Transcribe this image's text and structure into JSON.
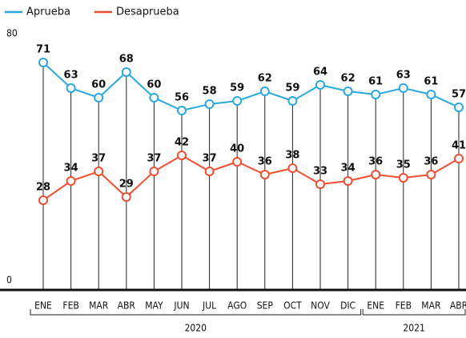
{
  "chart_data": {
    "type": "line",
    "categories": [
      "ENE",
      "FEB",
      "MAR",
      "ABR",
      "MAY",
      "JUN",
      "JUL",
      "AGO",
      "SEP",
      "OCT",
      "NOV",
      "DIC",
      "ENE",
      "FEB",
      "MAR",
      "ABR"
    ],
    "x_groups": [
      {
        "label": "2020",
        "span": 12
      },
      {
        "label": "2021",
        "span": 4
      }
    ],
    "series": [
      {
        "name": "Aprueba",
        "color": "#29a8e0",
        "values": [
          71,
          63,
          60,
          68,
          60,
          56,
          58,
          59,
          62,
          59,
          64,
          62,
          61,
          63,
          61,
          57
        ]
      },
      {
        "name": "Desaprueba",
        "color": "#f04e30",
        "values": [
          28,
          34,
          37,
          29,
          37,
          42,
          37,
          40,
          36,
          38,
          33,
          34,
          36,
          35,
          36,
          41
        ]
      }
    ],
    "ylim": [
      0,
      80
    ],
    "yticks": [
      0,
      80
    ]
  }
}
